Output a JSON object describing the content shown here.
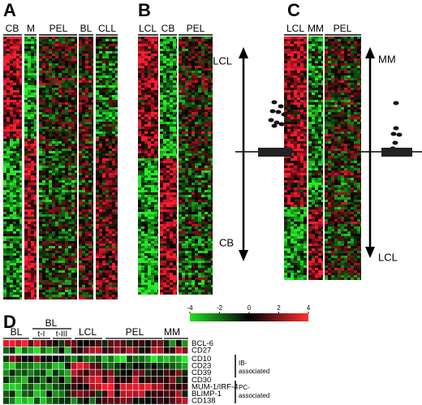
{
  "panels": [
    {
      "label": "A",
      "groups": [
        "CB",
        "M",
        "PEL",
        "BL",
        "CLL"
      ]
    },
    {
      "label": "B",
      "groups": [
        "LCL",
        "CB",
        "PEL"
      ],
      "arrow_top": "LCL",
      "arrow_bottom": "CB"
    },
    {
      "label": "C",
      "groups": [
        "LCL",
        "MM",
        "PEL"
      ],
      "arrow_top": "MM",
      "arrow_bottom": "LCL"
    },
    {
      "label": "D",
      "groups": [
        "BL",
        "BL",
        "t-I",
        "t-III",
        "LCL",
        "PEL",
        "MM"
      ],
      "genes": [
        "BCL-6",
        "CD27",
        "CD10",
        "CD23",
        "CD39",
        "CD30",
        "MUM-1/IRF-4",
        "BLIMP-1",
        "CD138"
      ],
      "brackets": [
        "IB-",
        "associated",
        "PC-",
        "associated"
      ]
    }
  ],
  "color_scale": {
    "ticks": [
      -4,
      -2,
      0,
      2,
      4
    ]
  }
}
